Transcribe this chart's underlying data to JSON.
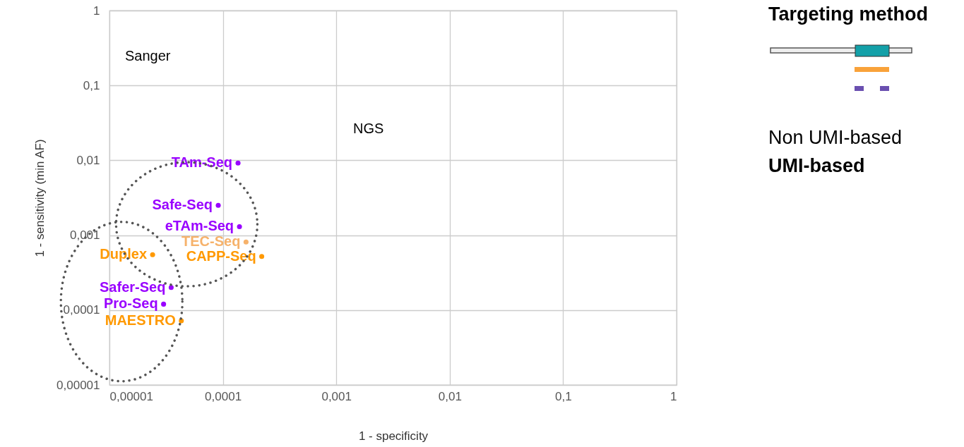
{
  "chart_data": {
    "type": "scatter",
    "xlabel": "1 - specificity",
    "ylabel": "1 - sensitivity (min AF)",
    "legend_title": "Targeting method",
    "log": "xy",
    "grid": true,
    "marker": "circle",
    "xlim": [
      1e-05,
      1
    ],
    "ylim": [
      1e-05,
      1
    ],
    "xticks": [
      {
        "value": 1e-05,
        "label": "0,00001"
      },
      {
        "value": 0.0001,
        "label": "0,0001"
      },
      {
        "value": 0.001,
        "label": "0,001"
      },
      {
        "value": 0.01,
        "label": "0,01"
      },
      {
        "value": 0.1,
        "label": "0,1"
      },
      1
    ],
    "yticks": [
      {
        "value": 1e-05,
        "label": "0,00001"
      },
      {
        "value": 0.0001,
        "label": "0,0001"
      },
      {
        "value": 0.001,
        "label": "0,001"
      },
      {
        "value": 0.01,
        "label": "0,01"
      },
      {
        "value": 0.1,
        "label": "0,1"
      },
      1
    ],
    "series": [
      {
        "name": "TAm-Seq",
        "color": "#9900ff",
        "x": [
          0.000136
        ],
        "values": [
          0.0092
        ]
      },
      {
        "name": "Safe-Seq",
        "color": "#9900ff",
        "x": [
          9.1e-05
        ],
        "values": [
          0.0025
        ]
      },
      {
        "name": "eTAm-Seq",
        "color": "#9900ff",
        "x": [
          0.00014
        ],
        "values": [
          0.0013
        ]
      },
      {
        "name": "TEC-Seq",
        "color": "#f6b26b",
        "x": [
          0.00016
        ],
        "values": [
          0.00081
        ]
      },
      {
        "name": "CAPP-Seq",
        "color": "#ff9900",
        "x": [
          0.00022
        ],
        "values": [
          0.00052
        ]
      },
      {
        "name": "Duplex",
        "color": "#ff9900",
        "x": [
          2.4e-05
        ],
        "values": [
          0.00055
        ]
      },
      {
        "name": "Safer-Seq",
        "color": "#9900ff",
        "x": [
          3.5e-05
        ],
        "values": [
          0.0002
        ]
      },
      {
        "name": "Pro-Seq",
        "color": "#9900ff",
        "x": [
          3e-05
        ],
        "values": [
          0.00012
        ]
      },
      {
        "name": "MAESTRO",
        "color": "#ff9900",
        "x": [
          4.3e-05
        ],
        "values": [
          7.2e-05
        ]
      }
    ],
    "annotations": [
      "Sanger",
      "NGS",
      "Non UMI-based",
      "UMI-based"
    ]
  }
}
